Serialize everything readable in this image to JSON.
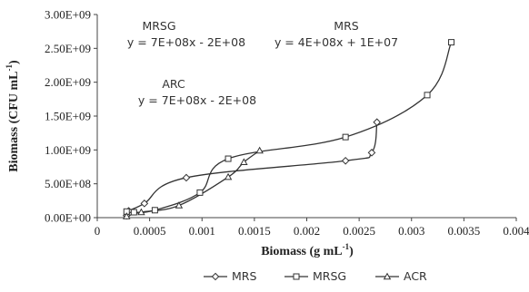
{
  "chart_data": {
    "type": "line",
    "xlabel": "Biomass (g mL",
    "xlabel_sup": "-1",
    "xlabel_end": ")",
    "ylabel": "Biomass (CFU mL",
    "ylabel_sup": "-1",
    "ylabel_end": ")",
    "xlim": [
      0,
      0.004
    ],
    "ylim": [
      0,
      3000000000
    ],
    "x_ticks": [
      {
        "value": 0,
        "label": "0"
      },
      {
        "value": 0.0005,
        "label": "0.0005"
      },
      {
        "value": 0.001,
        "label": "0.001"
      },
      {
        "value": 0.0015,
        "label": "0.0015"
      },
      {
        "value": 0.002,
        "label": "0.002"
      },
      {
        "value": 0.0025,
        "label": "0.0025"
      },
      {
        "value": 0.003,
        "label": "0.003"
      },
      {
        "value": 0.0035,
        "label": "0.0035"
      },
      {
        "value": 0.004,
        "label": "0.004"
      }
    ],
    "y_ticks": [
      {
        "value": 0,
        "label": "0.00E+00"
      },
      {
        "value": 500000000,
        "label": "5.00E+08"
      },
      {
        "value": 1000000000,
        "label": "1.00E+09"
      },
      {
        "value": 1500000000,
        "label": "1.50E+09"
      },
      {
        "value": 2000000000,
        "label": "2.00E+09"
      },
      {
        "value": 2500000000,
        "label": "2.50E+09"
      },
      {
        "value": 3000000000,
        "label": "3.00E+09"
      }
    ],
    "grid": false,
    "legend_position": "bottom",
    "series": [
      {
        "name": "MRS",
        "marker": "diamond",
        "x": [
          0.00028,
          0.0003,
          0.00045,
          0.00085,
          0.00237,
          0.00262,
          0.00267
        ],
        "y": [
          30000000,
          100000000,
          210000000,
          590000000,
          840000000,
          960000000,
          1410000000
        ]
      },
      {
        "name": "MRSG",
        "marker": "square",
        "x": [
          0.00028,
          0.00035,
          0.00055,
          0.00098,
          0.00125,
          0.00237,
          0.00315,
          0.00338
        ],
        "y": [
          90000000,
          80000000,
          110000000,
          370000000,
          870000000,
          1190000000,
          1810000000,
          2590000000
        ]
      },
      {
        "name": "ACR",
        "marker": "triangle",
        "x": [
          0.00028,
          0.00042,
          0.00078,
          0.00125,
          0.0014,
          0.00155
        ],
        "y": [
          20000000,
          80000000,
          180000000,
          600000000,
          820000000,
          990000000
        ]
      }
    ],
    "annotations": [
      {
        "id": "mrsg",
        "title": "MRSG",
        "equation": "y = 7E+08x - 2E+08"
      },
      {
        "id": "mrs",
        "title": "MRS",
        "equation": "y = 4E+08x + 1E+07"
      },
      {
        "id": "arc",
        "title": "ARC",
        "equation": "y = 7E+08x - 2E+08"
      }
    ]
  }
}
